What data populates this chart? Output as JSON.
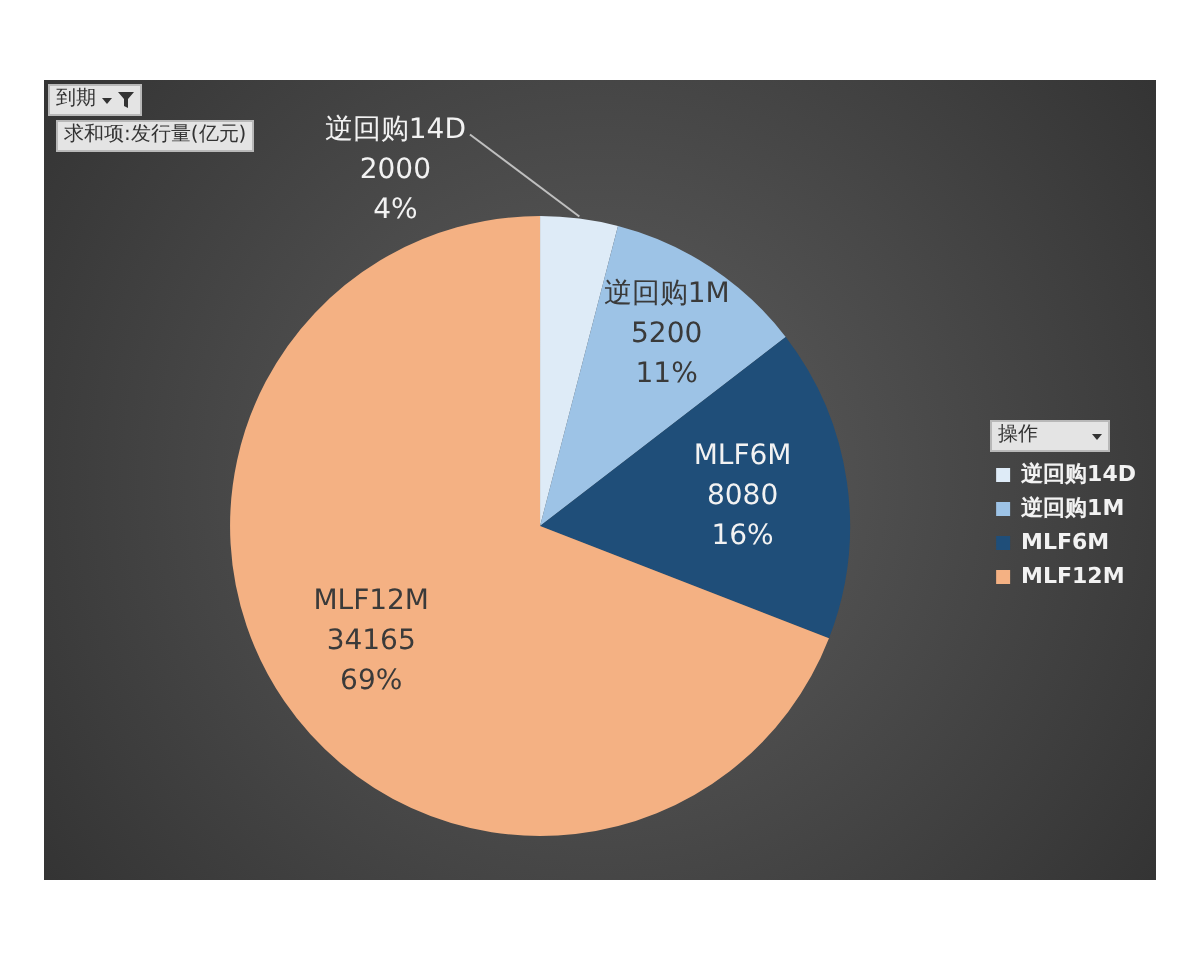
{
  "chart_data": {
    "type": "pie",
    "categories": [
      "逆回购14D",
      "逆回购1M",
      "MLF6M",
      "MLF12M"
    ],
    "values": [
      2000,
      5200,
      8080,
      34165
    ],
    "colors": [
      "#deebf7",
      "#9dc3e6",
      "#1f4e79",
      "#f4b183"
    ],
    "value_labels": [
      "2000\n4%",
      "5200\n11%",
      "8080\n16%",
      "34165\n69%"
    ],
    "legend": "right",
    "legend_title": "操作",
    "annotations": [
      "到期",
      "求和项:发行量(亿元)"
    ]
  }
}
